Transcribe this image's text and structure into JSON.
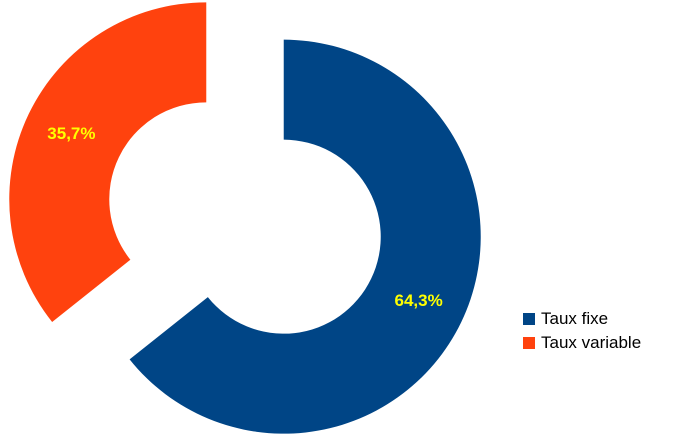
{
  "chart_data": {
    "type": "pie",
    "variant": "exploded-donut",
    "title": "",
    "legend_position": "right",
    "slices": [
      {
        "name": "Taux fixe",
        "value": 64.3,
        "label": "64,3%",
        "color": "#004586"
      },
      {
        "name": "Taux variable",
        "value": 35.7,
        "label": "35,7%",
        "color": "#ff420e"
      }
    ],
    "label_color": "#ffff00"
  }
}
